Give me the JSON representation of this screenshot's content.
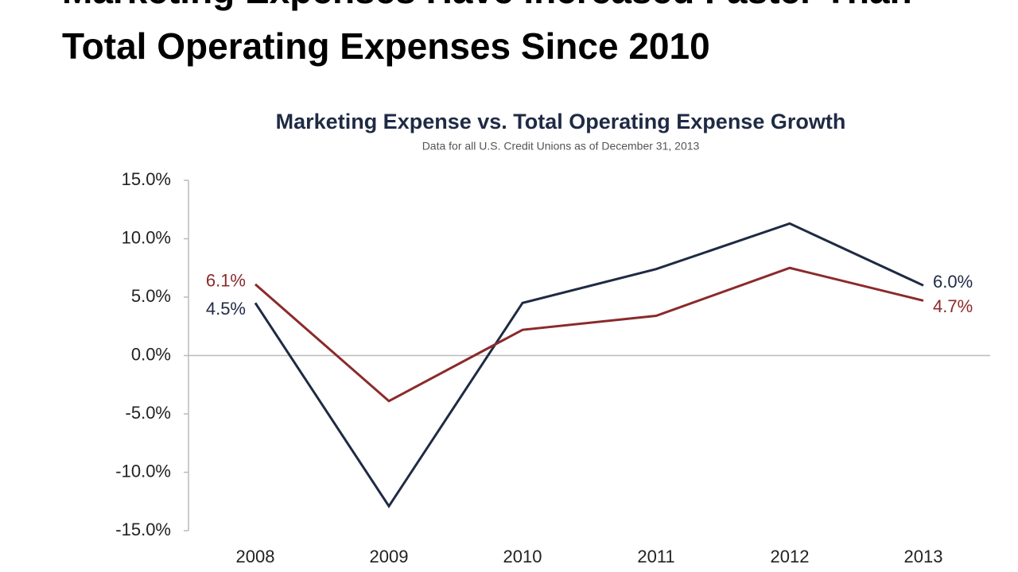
{
  "page_title": [
    "Marketing Expenses Have Increased Faster Than",
    "Total Operating Expenses Since 2010"
  ],
  "chart_data": {
    "type": "line",
    "title": "Marketing Expense vs. Total Operating Expense Growth",
    "subtitle": "Data for all U.S. Credit Unions as of December 31, 2013",
    "categories": [
      "2008",
      "2009",
      "2010",
      "2011",
      "2012",
      "2013"
    ],
    "series": [
      {
        "color": "#1f2a44",
        "values": [
          4.5,
          -12.9,
          4.5,
          7.4,
          11.3,
          6.0
        ],
        "value_labels": [
          "4.5%",
          null,
          null,
          null,
          null,
          "6.0%"
        ]
      },
      {
        "color": "#8b2a2a",
        "values": [
          6.1,
          -3.9,
          2.2,
          3.4,
          7.5,
          4.7
        ],
        "value_labels": [
          "6.1%",
          null,
          null,
          null,
          null,
          "4.7%"
        ]
      }
    ],
    "ylim": [
      -15,
      15
    ],
    "yticks": [
      {
        "value": 15,
        "label": "15.0%"
      },
      {
        "value": 10,
        "label": "10.0%"
      },
      {
        "value": 5,
        "label": "5.0%"
      },
      {
        "value": 0,
        "label": "0.0%"
      },
      {
        "value": -5,
        "label": "-5.0%"
      },
      {
        "value": -10,
        "label": "-10.0%"
      },
      {
        "value": -15,
        "label": "-15.0%"
      }
    ],
    "grid": false
  }
}
